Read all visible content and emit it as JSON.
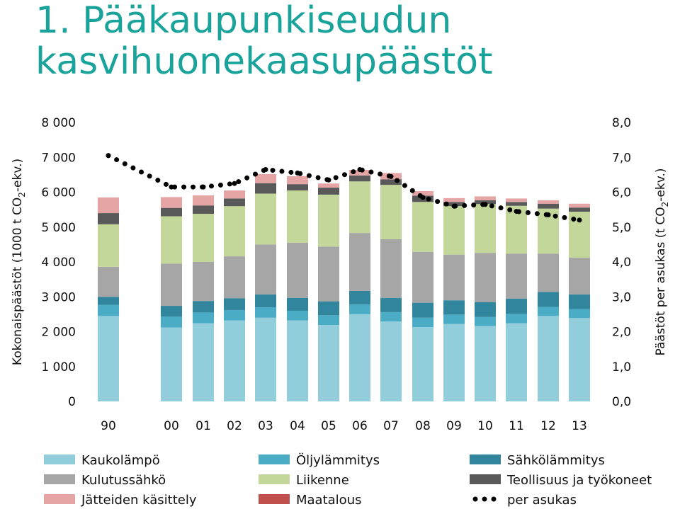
{
  "title_lines": [
    "1. Pääkaupunkiseudun",
    "kasvihuonekaasupäästöt"
  ],
  "chart_data": {
    "type": "bar",
    "stacked": true,
    "categories": [
      "90",
      "00",
      "01",
      "02",
      "03",
      "04",
      "05",
      "06",
      "07",
      "08",
      "09",
      "10",
      "11",
      "12",
      "13"
    ],
    "y_left": {
      "label_parts": [
        "Kokonaispäästöt (1000 t CO",
        "2",
        "-ekv.)"
      ],
      "ylim": [
        0,
        8000
      ],
      "ticks": [
        "0",
        "1 000",
        "2 000",
        "3 000",
        "4 000",
        "5 000",
        "6 000",
        "7 000",
        "8 000"
      ]
    },
    "y_right": {
      "label_parts": [
        "Päästöt per asukas (t CO",
        "2",
        "-ekv.)"
      ],
      "ylim": [
        0,
        8
      ],
      "ticks": [
        "0,0",
        "1,0",
        "2,0",
        "3,0",
        "4,0",
        "5,0",
        "6,0",
        "7,0",
        "8,0"
      ]
    },
    "series": [
      {
        "name": "Kaukolämpö",
        "color": "#92cddc",
        "values": [
          2450,
          2120,
          2240,
          2320,
          2400,
          2320,
          2190,
          2500,
          2290,
          2130,
          2220,
          2160,
          2240,
          2450,
          2390
        ]
      },
      {
        "name": "Öljylämmitys",
        "color": "#4bacc6",
        "values": [
          320,
          310,
          310,
          300,
          300,
          280,
          280,
          280,
          270,
          270,
          270,
          260,
          270,
          260,
          260
        ]
      },
      {
        "name": "Sähkölämmitys",
        "color": "#31859c",
        "values": [
          230,
          310,
          330,
          340,
          370,
          370,
          400,
          390,
          410,
          430,
          410,
          430,
          440,
          430,
          420
        ]
      },
      {
        "name": "Kulutussähkö",
        "color": "#a6a6a6",
        "values": [
          860,
          1210,
          1120,
          1200,
          1430,
          1580,
          1570,
          1660,
          1680,
          1460,
          1310,
          1410,
          1290,
          1100,
          1050
        ]
      },
      {
        "name": "Liikenne",
        "color": "#c4d79b",
        "values": [
          1220,
          1360,
          1380,
          1440,
          1460,
          1500,
          1490,
          1480,
          1560,
          1430,
          1390,
          1400,
          1370,
          1290,
          1320
        ]
      },
      {
        "name": "Teollisuus ja työkoneet",
        "color": "#595959",
        "values": [
          320,
          240,
          240,
          220,
          300,
          180,
          200,
          170,
          160,
          180,
          120,
          110,
          110,
          140,
          120
        ]
      },
      {
        "name": "Jätteiden käsittely",
        "color": "#e6a5a5",
        "values": [
          450,
          310,
          290,
          230,
          260,
          230,
          120,
          160,
          180,
          130,
          110,
          110,
          100,
          100,
          110
        ]
      },
      {
        "name": "Maatalous",
        "color": "#c0504d",
        "values": [
          0,
          0,
          0,
          0,
          0,
          0,
          0,
          0,
          0,
          0,
          0,
          0,
          0,
          0,
          0
        ]
      }
    ],
    "line_series": {
      "name": "per asukas",
      "color": "#000000",
      "style": "dotted",
      "x_labels": [
        "90",
        "00",
        "01",
        "02",
        "03",
        "04",
        "05",
        "06",
        "07",
        "08",
        "09",
        "10",
        "11",
        "12",
        "13"
      ],
      "values": [
        7.05,
        6.15,
        6.15,
        6.25,
        6.65,
        6.55,
        6.35,
        6.65,
        6.45,
        5.85,
        5.6,
        5.65,
        5.45,
        5.35,
        5.2
      ]
    },
    "legend_position": "bottom",
    "grid": false
  }
}
